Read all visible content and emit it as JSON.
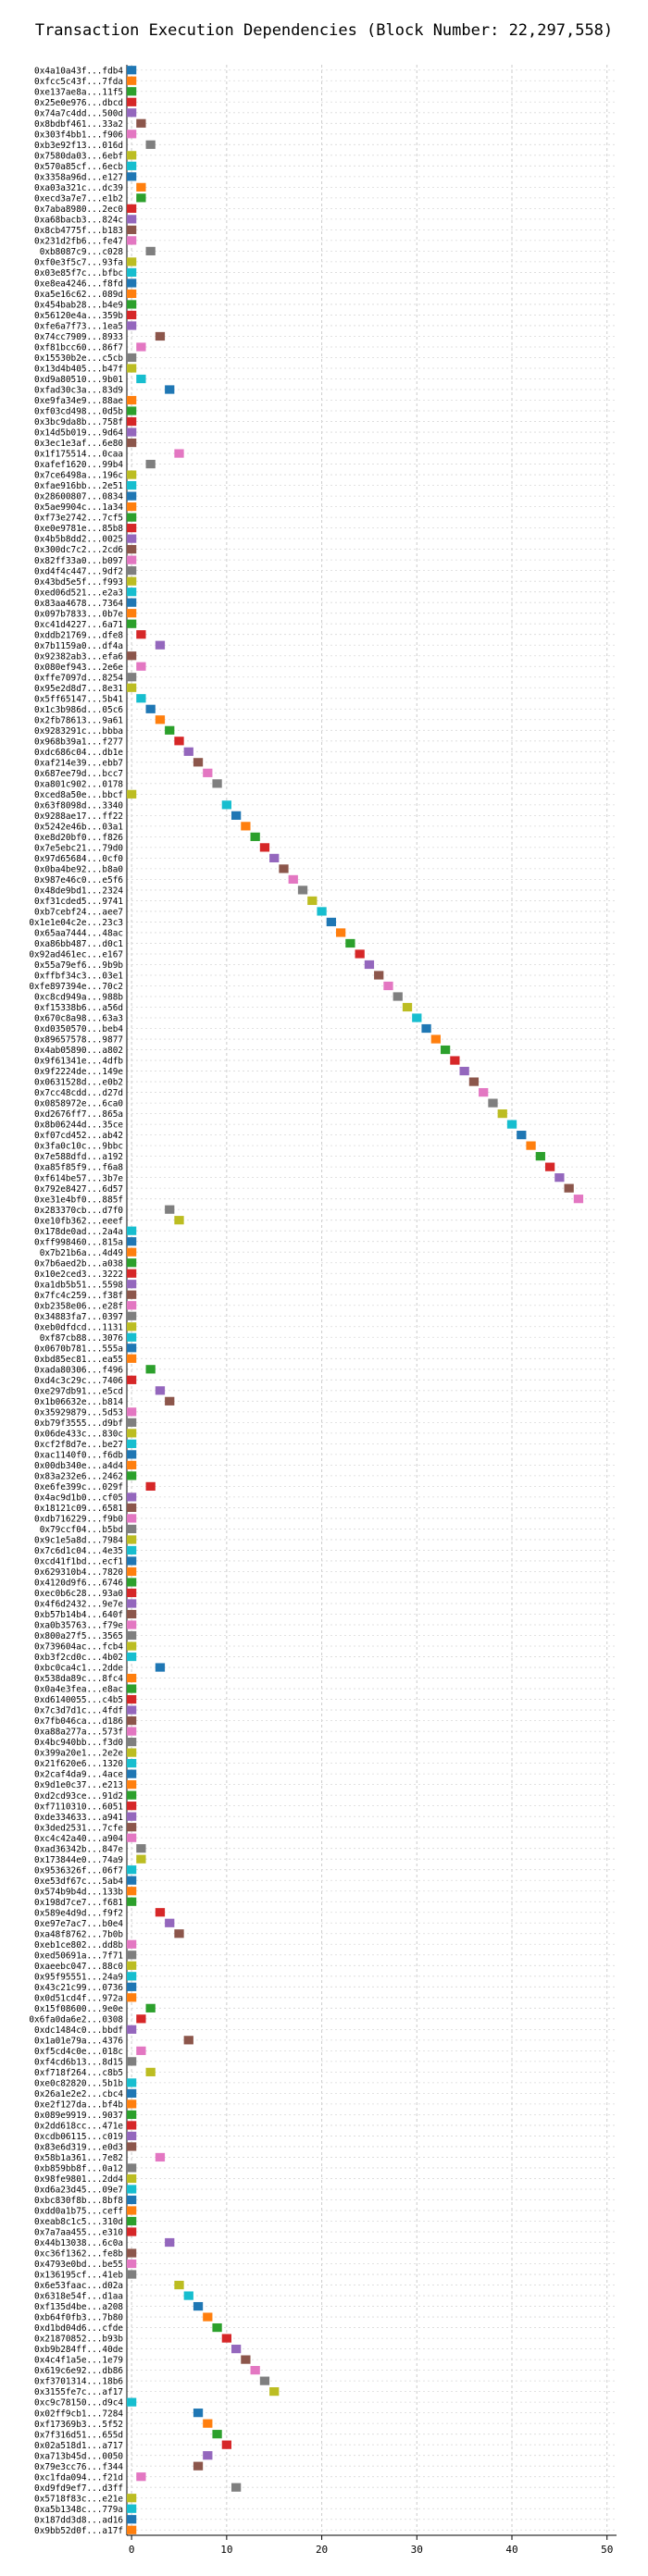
{
  "chart_data": {
    "type": "gantt",
    "title": "Transaction Execution Dependencies (Block Number: 22,297,558)",
    "xlabel": "",
    "ylabel": "",
    "xlim": [
      -0.5,
      51
    ],
    "xticks": [
      0,
      10,
      20,
      30,
      40,
      50
    ],
    "grid": true,
    "palette": [
      "#1f77b4",
      "#ff7f0e",
      "#2ca02c",
      "#d62728",
      "#9467bd",
      "#8c564b",
      "#e377c2",
      "#7f7f7f",
      "#bcbd22",
      "#17becf"
    ],
    "transactions": [
      [
        "0x4a10a43f...fdb4",
        0
      ],
      [
        "0xfcc5c43f...7fda",
        0
      ],
      [
        "0xe137ae8a...11f5",
        0
      ],
      [
        "0x25e0e976...dbcd",
        0
      ],
      [
        "0x74a7c4dd...500d",
        0
      ],
      [
        "0x8bdbf461...33a2",
        1
      ],
      [
        "0x303f4bb1...f906",
        0
      ],
      [
        "0xb3e92f13...016d",
        2
      ],
      [
        "0x7580da03...6ebf",
        0
      ],
      [
        "0x570a85cf...6ecb",
        0
      ],
      [
        "0x3358a96d...e127",
        0
      ],
      [
        "0xa03a321c...dc39",
        1
      ],
      [
        "0xecd3a7e7...e1b2",
        1
      ],
      [
        "0x7aba8980...2ec0",
        0
      ],
      [
        "0xa68bacb3...824c",
        0
      ],
      [
        "0x8cb4775f...b183",
        0
      ],
      [
        "0x231d2fb6...fe47",
        0
      ],
      [
        "0xb8087c9...c028",
        2
      ],
      [
        "0xf0e3f5c7...93fa",
        0
      ],
      [
        "0x03e85f7c...bfbc",
        0
      ],
      [
        "0xe8ea4246...f8fd",
        0
      ],
      [
        "0xa5e16c62...089d",
        0
      ],
      [
        "0x454bab28...b4e9",
        0
      ],
      [
        "0x56120e4a...359b",
        0
      ],
      [
        "0xfe6a7f73...1ea5",
        0
      ],
      [
        "0x74cc7909...8933",
        3
      ],
      [
        "0xf81bcc60...86f7",
        1
      ],
      [
        "0x15530b2e...c5cb",
        0
      ],
      [
        "0x13d4b405...b47f",
        0
      ],
      [
        "0xd9a80510...9b01",
        1
      ],
      [
        "0xfad30c3a...83d9",
        4
      ],
      [
        "0xe9fa34e9...88ae",
        0
      ],
      [
        "0xf03cd498...0d5b",
        0
      ],
      [
        "0x3bc9da8b...758f",
        0
      ],
      [
        "0x14d5b019...9d64",
        0
      ],
      [
        "0x3ec1e3af...6e80",
        0
      ],
      [
        "0x1f175514...0caa",
        5
      ],
      [
        "0xafef1620...99b4",
        2
      ],
      [
        "0x7ce6498a...196c",
        0
      ],
      [
        "0xfae916bb...2e51",
        0
      ],
      [
        "0x28600807...0834",
        0
      ],
      [
        "0x5ae9904c...1a34",
        0
      ],
      [
        "0xf73e2742...7cf5",
        0
      ],
      [
        "0xe0e9781e...85b8",
        0
      ],
      [
        "0x4b5b8dd2...0025",
        0
      ],
      [
        "0x300dc7c2...2cd6",
        0
      ],
      [
        "0x82ff33a0...b097",
        0
      ],
      [
        "0xd4f4c447...9df2",
        0
      ],
      [
        "0x43bd5e5f...f993",
        0
      ],
      [
        "0xed06d521...e2a3",
        0
      ],
      [
        "0x83aa4678...7364",
        0
      ],
      [
        "0x097b7833...0b7e",
        0
      ],
      [
        "0xc41d4227...6a71",
        0
      ],
      [
        "0xddb21769...dfe8",
        1
      ],
      [
        "0x7b1159a0...df4a",
        3
      ],
      [
        "0x92382ab3...efa6",
        0
      ],
      [
        "0x080ef943...2e6e",
        1
      ],
      [
        "0xffe7097d...8254",
        0
      ],
      [
        "0x95e2d8d7...8e31",
        0
      ],
      [
        "0x5ff65147...5b41",
        1
      ],
      [
        "0x1c3b986d...05c6",
        2
      ],
      [
        "0x2fb78613...9a61",
        3
      ],
      [
        "0x9283291c...bbba",
        4
      ],
      [
        "0x968b39a1...f277",
        5
      ],
      [
        "0xdc686c04...db1e",
        6
      ],
      [
        "0xaf214e39...ebb7",
        7
      ],
      [
        "0x687ee79d...bcc7",
        8
      ],
      [
        "0xa801c902...0178",
        9
      ],
      [
        "0xced8a50e...bbcf",
        0
      ],
      [
        "0x63f8098d...3340",
        10
      ],
      [
        "0x9288ae17...ff22",
        11
      ],
      [
        "0x5242e46b...03a1",
        12
      ],
      [
        "0xe8d20bf0...f826",
        13
      ],
      [
        "0x7e5ebc21...79d0",
        14
      ],
      [
        "0x97d65684...0cf0",
        15
      ],
      [
        "0x0ba4be92...b8a0",
        16
      ],
      [
        "0x987e46c0...e5f6",
        17
      ],
      [
        "0x48de9bd1...2324",
        18
      ],
      [
        "0xf31cded5...9741",
        19
      ],
      [
        "0xb7cebf24...aee7",
        20
      ],
      [
        "0x1e1e04c2e...23c3",
        21
      ],
      [
        "0x65aa7444...48ac",
        22
      ],
      [
        "0xa86bb487...d0c1",
        23
      ],
      [
        "0x92ad461ec...e167",
        24
      ],
      [
        "0x55a79ef6...9b9b",
        25
      ],
      [
        "0xffbf34c3...03e1",
        26
      ],
      [
        "0xfe897394e...70c2",
        27
      ],
      [
        "0xc8cd949a...988b",
        28
      ],
      [
        "0xf15338b6...a56d",
        29
      ],
      [
        "0x670c8a98...63a3",
        30
      ],
      [
        "0xd0350570...beb4",
        31
      ],
      [
        "0x89657578...9877",
        32
      ],
      [
        "0x4ab05890...a802",
        33
      ],
      [
        "0x9f61341e...4dfb",
        34
      ],
      [
        "0x9f2224de...149e",
        35
      ],
      [
        "0x0631528d...e0b2",
        36
      ],
      [
        "0x7cc48cdd...d27d",
        37
      ],
      [
        "0x0858972e...6ca0",
        38
      ],
      [
        "0xd2676ff7...865a",
        39
      ],
      [
        "0x8b06244d...35ce",
        40
      ],
      [
        "0xf07cd452...ab42",
        41
      ],
      [
        "0x3fa0c10c...9bbc",
        42
      ],
      [
        "0x7e588dfd...a192",
        43
      ],
      [
        "0xa85f85f9...f6a8",
        44
      ],
      [
        "0xf614be57...3b7e",
        45
      ],
      [
        "0x792e8427...6d57",
        46
      ],
      [
        "0xe31e4bf0...885f",
        47
      ],
      [
        "0x283370cb...d7f0",
        4
      ],
      [
        "0xe10fb362...eeef",
        5
      ],
      [
        "0x178de0ad...2a4a",
        0
      ],
      [
        "0xff998460...815a",
        0
      ],
      [
        "0x7b21b6a...4d49",
        0
      ],
      [
        "0x7b6aed2b...a038",
        0
      ],
      [
        "0x10e2ced3...3222",
        0
      ],
      [
        "0xa1db5b51...5598",
        0
      ],
      [
        "0x7fc4c259...f38f",
        0
      ],
      [
        "0xb2358e06...e28f",
        0
      ],
      [
        "0x34883fa7...0397",
        0
      ],
      [
        "0xeb0dfdcd...1131",
        0
      ],
      [
        "0xf87cb88...3076",
        0
      ],
      [
        "0x0670b781...555a",
        0
      ],
      [
        "0xbd85ec81...ea55",
        0
      ],
      [
        "0xada80306...f496",
        2
      ],
      [
        "0xd4c3c29c...7406",
        0
      ],
      [
        "0xe297db91...e5cd",
        3
      ],
      [
        "0x1b06632e...b814",
        4
      ],
      [
        "0x35929879...5d53",
        0
      ],
      [
        "0xb79f3555...d9bf",
        0
      ],
      [
        "0x06de433c...830c",
        0
      ],
      [
        "0xcf2f8d7e...be27",
        0
      ],
      [
        "0xac1140f0...f6db",
        0
      ],
      [
        "0x00db340e...a4d4",
        0
      ],
      [
        "0x83a232e6...2462",
        0
      ],
      [
        "0xe6fe399c...029f",
        2
      ],
      [
        "0x4ac9d1b0...cf05",
        0
      ],
      [
        "0x18121c09...6581",
        0
      ],
      [
        "0xdb716229...f9b0",
        0
      ],
      [
        "0x79ccf04...b5bd",
        0
      ],
      [
        "0x9c1e5a8d...7984",
        0
      ],
      [
        "0x7c6d1c04...4e35",
        0
      ],
      [
        "0xcd41f1bd...ecf1",
        0
      ],
      [
        "0x629310b4...7820",
        0
      ],
      [
        "0x4120d9f6...6746",
        0
      ],
      [
        "0xec0b6c28...93a0",
        0
      ],
      [
        "0x4f6d2432...9e7e",
        0
      ],
      [
        "0xb57b14b4...640f",
        0
      ],
      [
        "0xa0b35763...f79e",
        0
      ],
      [
        "0x800a27f5...3565",
        0
      ],
      [
        "0x739604ac...fcb4",
        0
      ],
      [
        "0xb3f2cd0c...4b02",
        0
      ],
      [
        "0xbc0ca4c1...2dde",
        3
      ],
      [
        "0x538da89c...8fc4",
        0
      ],
      [
        "0x0a4e3fea...e8ac",
        0
      ],
      [
        "0xd6140055...c4b5",
        0
      ],
      [
        "0x7c3d7d1c...4fdf",
        0
      ],
      [
        "0x7fb046ca...d186",
        0
      ],
      [
        "0xa88a277a...573f",
        0
      ],
      [
        "0x4bc940bb...f3d0",
        0
      ],
      [
        "0x399a20e1...2e2e",
        0
      ],
      [
        "0x21f620e6...1320",
        0
      ],
      [
        "0x2caf4da9...4ace",
        0
      ],
      [
        "0x9d1e0c37...e213",
        0
      ],
      [
        "0xd2cd93ce...91d2",
        0
      ],
      [
        "0xf7110310...6051",
        0
      ],
      [
        "0xde334633...a941",
        0
      ],
      [
        "0x3ded2531...7cfe",
        0
      ],
      [
        "0xc4c42a40...a904",
        0
      ],
      [
        "0xad36342b...847e",
        1
      ],
      [
        "0x173844e0...74a9",
        1
      ],
      [
        "0x9536326f...06f7",
        0
      ],
      [
        "0xe53df67c...5ab4",
        0
      ],
      [
        "0x574b9b4d...133b",
        0
      ],
      [
        "0x198d7ce7...f681",
        0
      ],
      [
        "0x589e4d9d...f9f2",
        3
      ],
      [
        "0xe97e7ac7...b0e4",
        4
      ],
      [
        "0xa48f8762...7b0b",
        5
      ],
      [
        "0xeb1ce802...dd8b",
        0
      ],
      [
        "0xed50691a...7f71",
        0
      ],
      [
        "0xaeebc047...88c0",
        0
      ],
      [
        "0x95f95551...24a9",
        0
      ],
      [
        "0x43c21c99...0736",
        0
      ],
      [
        "0x0d51cd4f...972a",
        0
      ],
      [
        "0x15f08600...9e0e",
        2
      ],
      [
        "0x6fa0da6e2...0308",
        1
      ],
      [
        "0xdc1484c0...bbdf",
        0
      ],
      [
        "0x1a01e79a...4376",
        6
      ],
      [
        "0xf5cd4c0e...018c",
        1
      ],
      [
        "0xf4cd6b13...8d15",
        0
      ],
      [
        "0xf718f264...c8b5",
        2
      ],
      [
        "0xe0c82820...5b1b",
        0
      ],
      [
        "0x26a1e2e2...cbc4",
        0
      ],
      [
        "0xe2f127da...bf4b",
        0
      ],
      [
        "0x089e9919...9037",
        0
      ],
      [
        "0x2dd618cc...471e",
        0
      ],
      [
        "0xcdb06115...c019",
        0
      ],
      [
        "0x83e6d319...e0d3",
        0
      ],
      [
        "0x58b1a361...7e82",
        3
      ],
      [
        "0xb859bb8f...0a12",
        0
      ],
      [
        "0x98fe9801...2dd4",
        0
      ],
      [
        "0xd6a23d45...09e7",
        0
      ],
      [
        "0xbc830f8b...8bf8",
        0
      ],
      [
        "0xdd0a1b75...ceff",
        0
      ],
      [
        "0xeab8c1c5...310d",
        0
      ],
      [
        "0x7a7aa455...e310",
        0
      ],
      [
        "0x44b13038...6c0a",
        4
      ],
      [
        "0xc36f1362...fe8b",
        0
      ],
      [
        "0x4793e0bd...be55",
        0
      ],
      [
        "0x136195cf...41eb",
        0
      ],
      [
        "0x6e53faac...d02a",
        5
      ],
      [
        "0x6318e54f...d1aa",
        6
      ],
      [
        "0xf135d4be...a208",
        7
      ],
      [
        "0xb64f0fb3...7b80",
        8
      ],
      [
        "0xd1bd04d6...cfde",
        9
      ],
      [
        "0x21870852...b93b",
        10
      ],
      [
        "0xb9b284ff...40de",
        11
      ],
      [
        "0x4c4f1a5e...1e79",
        12
      ],
      [
        "0x619c6e92...db86",
        13
      ],
      [
        "0xf3701314...18b6",
        14
      ],
      [
        "0x3155fe7c...af17",
        15
      ],
      [
        "0xc9c78150...d9c4",
        0
      ],
      [
        "0x02ff9cb1...7284",
        7
      ],
      [
        "0xf17369b3...5f52",
        8
      ],
      [
        "0x7f316d51...655d",
        9
      ],
      [
        "0x02a518d1...a717",
        10
      ],
      [
        "0xa713b45d...0050",
        8
      ],
      [
        "0x79e3cc76...f344",
        7
      ],
      [
        "0xc1fda094...f21d",
        1
      ],
      [
        "0xd9fd9ef7...d3ff",
        11
      ],
      [
        "0x5718f83c...e21e",
        0
      ],
      [
        "0xa5b1348c...779a",
        0
      ],
      [
        "0x187dd3d8...ad16",
        0
      ],
      [
        "0x9bb52d0f...a17f",
        0
      ]
    ]
  }
}
